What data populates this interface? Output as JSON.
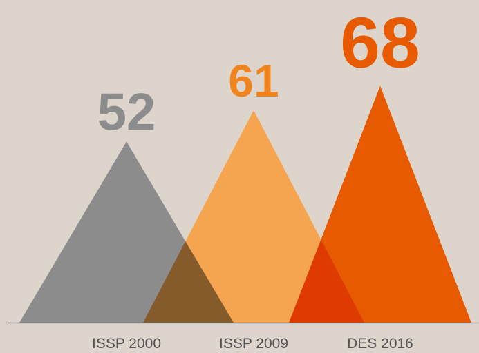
{
  "chart_data": {
    "type": "triangle",
    "categories": [
      "ISSP 2000",
      "ISSP 2009",
      "DES 2016"
    ],
    "values": [
      52,
      61,
      68
    ],
    "colors": [
      "#8c8c8c",
      "#f5a54f",
      "#e85a00"
    ],
    "label_colors": [
      "#8c8c8c",
      "#f0841f",
      "#e85a00"
    ]
  }
}
